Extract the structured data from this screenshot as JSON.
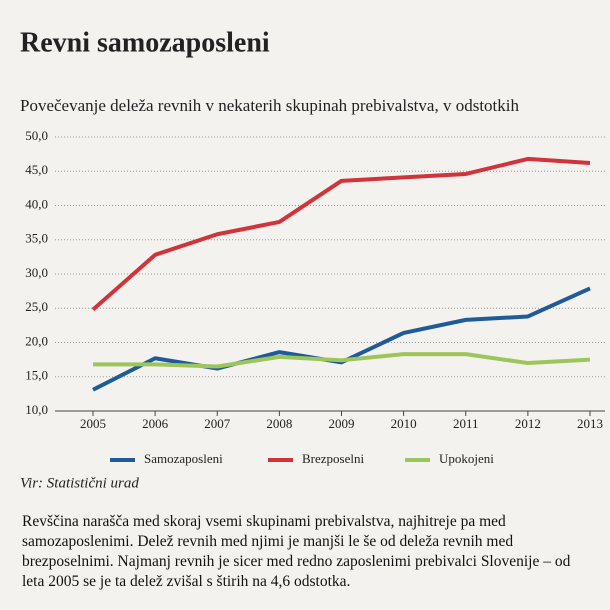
{
  "chart_data": {
    "type": "line",
    "title": "Revni samozaposleni",
    "subtitle": "Povečevanje deleža revnih v nekaterih skupinah prebivalstva, v odstotkih",
    "categories": [
      "2005",
      "2006",
      "2007",
      "2008",
      "2009",
      "2010",
      "2011",
      "2012",
      "2013"
    ],
    "series": [
      {
        "name": "Samozaposleni",
        "color": "#1f5b99",
        "values": [
          13.1,
          17.7,
          16.2,
          18.6,
          17.1,
          21.4,
          23.3,
          23.8,
          27.9
        ]
      },
      {
        "name": "Brezposelni",
        "color": "#d0343a",
        "values": [
          24.8,
          32.8,
          35.8,
          37.6,
          43.6,
          44.1,
          44.6,
          46.8,
          46.2
        ]
      },
      {
        "name": "Upokojeni",
        "color": "#9cc55a",
        "values": [
          16.8,
          16.8,
          16.5,
          17.9,
          17.4,
          18.3,
          18.3,
          17.0,
          17.5
        ]
      }
    ],
    "ylim": [
      10,
      50
    ],
    "yticks": [
      {
        "value": 10,
        "label": "10,0"
      },
      {
        "value": 15,
        "label": "15,0"
      },
      {
        "value": 20,
        "label": "20,0"
      },
      {
        "value": 25,
        "label": "25,0"
      },
      {
        "value": 30,
        "label": "30,0"
      },
      {
        "value": 35,
        "label": "35,0"
      },
      {
        "value": 40,
        "label": "40,0"
      },
      {
        "value": 45,
        "label": "45,0"
      },
      {
        "value": 50,
        "label": "50,0"
      }
    ],
    "grid": true,
    "source": "Vir: Statistični urad",
    "description": "Revščina narašča med skoraj vsemi skupinami prebivalstva, najhitreje pa med samozaposlenimi. Delež revnih med njimi je manjši le še od deleža revnih med brezposelnimi. Najmanj revnih je sicer med redno zaposlenimi prebivalci Slovenije – od leta 2005 se je ta delež zvišal s štirih na 4,6 odstotka."
  }
}
